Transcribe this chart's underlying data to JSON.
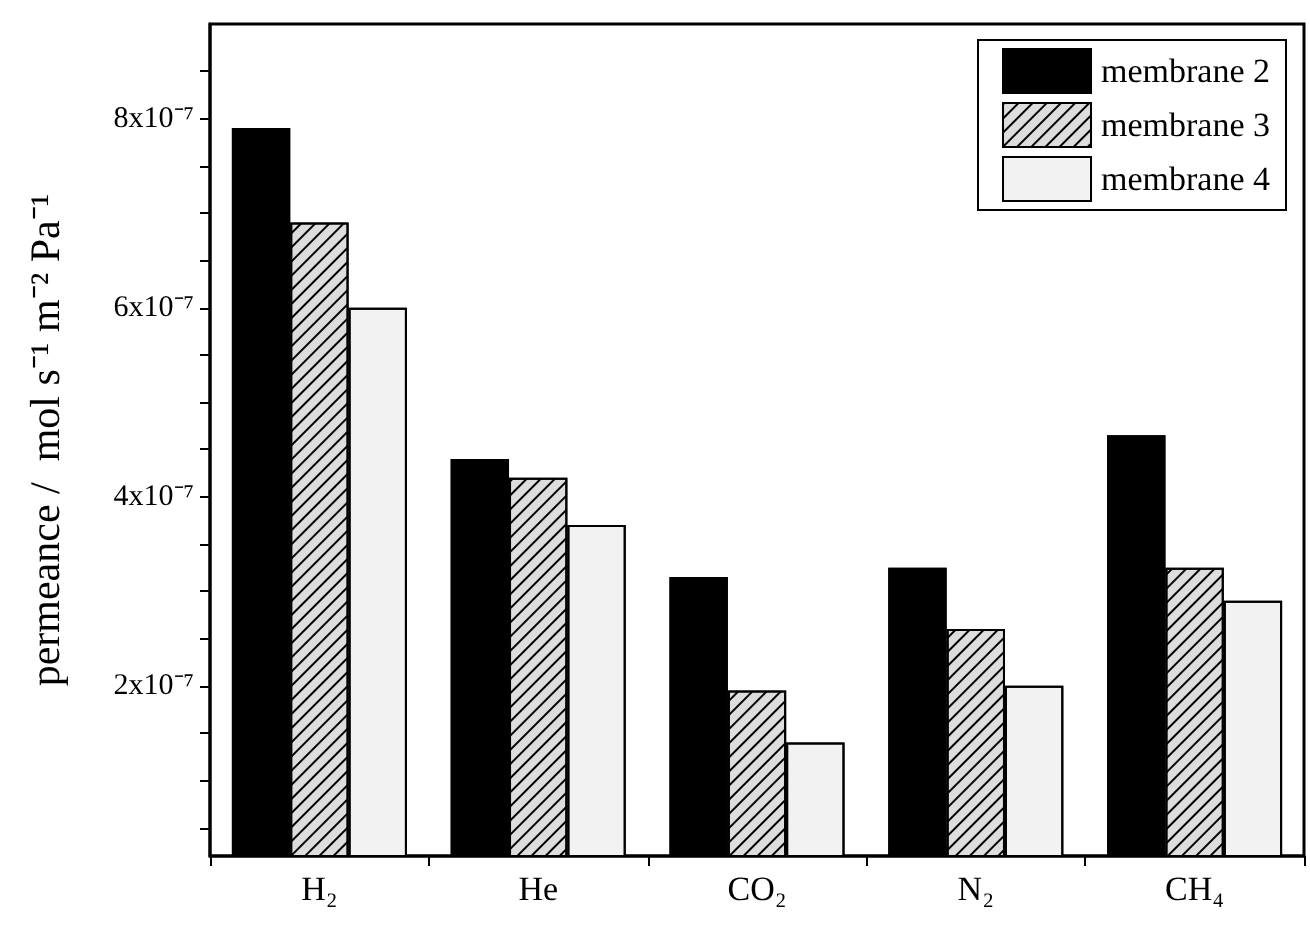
{
  "chart_data": {
    "type": "bar",
    "ylabel": "permeance /  mol s⁻¹ m⁻² Pa⁻¹",
    "categories": [
      "H₂",
      "He",
      "CO₂",
      "N₂",
      "CH₄"
    ],
    "series": [
      {
        "name": "membrane 2",
        "color": "#000000",
        "values": [
          7.9e-07,
          4.4e-07,
          3.15e-07,
          3.25e-07,
          4.65e-07
        ]
      },
      {
        "name": "membrane 3",
        "color": "#dddddd",
        "values": [
          6.9e-07,
          4.2e-07,
          1.95e-07,
          2.6e-07,
          3.25e-07
        ]
      },
      {
        "name": "membrane 4",
        "color": "#f2f2f2",
        "values": [
          6e-07,
          3.7e-07,
          1.4e-07,
          2e-07,
          2.9e-07
        ]
      }
    ],
    "ylim": [
      2e-08,
      9e-07
    ],
    "yticks": [
      {
        "value": 5e-08,
        "label": null
      },
      {
        "value": 1e-07,
        "label": null
      },
      {
        "value": 1.5e-07,
        "label": null
      },
      {
        "value": 2e-07,
        "label": "2x10⁻⁷"
      },
      {
        "value": 2.5e-07,
        "label": null
      },
      {
        "value": 3e-07,
        "label": null
      },
      {
        "value": 3.5e-07,
        "label": null
      },
      {
        "value": 4e-07,
        "label": "4x10⁻⁷"
      },
      {
        "value": 4.5e-07,
        "label": null
      },
      {
        "value": 5e-07,
        "label": null
      },
      {
        "value": 5.5e-07,
        "label": null
      },
      {
        "value": 6e-07,
        "label": "6x10⁻⁷"
      },
      {
        "value": 6.5e-07,
        "label": null
      },
      {
        "value": 7e-07,
        "label": null
      },
      {
        "value": 7.5e-07,
        "label": null
      },
      {
        "value": 8e-07,
        "label": "8x10⁻⁷"
      },
      {
        "value": 8.5e-07,
        "label": null
      }
    ],
    "grid": false,
    "legend": "top right"
  }
}
